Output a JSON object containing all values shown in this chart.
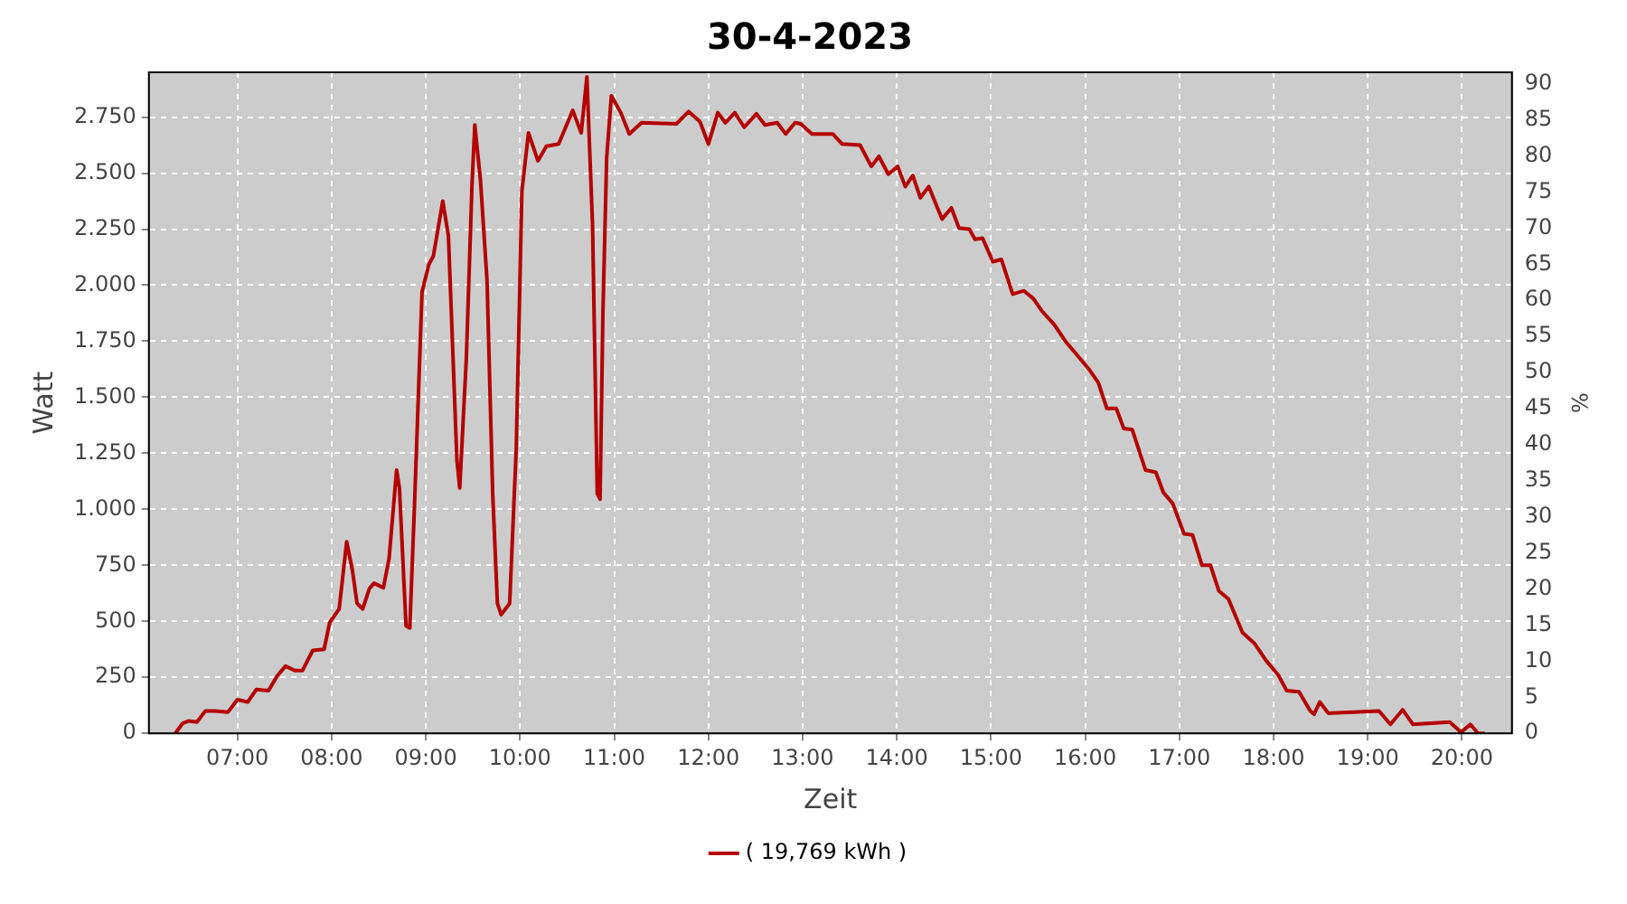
{
  "chart_data": {
    "type": "line",
    "title": "30-4-2023",
    "xlabel": "Zeit",
    "ylabel": "Watt",
    "y2label": "%",
    "xlim": [
      6.06,
      20.53
    ],
    "xticks": [
      {
        "value": 7,
        "label": "07:00"
      },
      {
        "value": 8,
        "label": "08:00"
      },
      {
        "value": 9,
        "label": "09:00"
      },
      {
        "value": 10,
        "label": "10:00"
      },
      {
        "value": 11,
        "label": "11:00"
      },
      {
        "value": 12,
        "label": "12:00"
      },
      {
        "value": 13,
        "label": "13:00"
      },
      {
        "value": 14,
        "label": "14:00"
      },
      {
        "value": 15,
        "label": "15:00"
      },
      {
        "value": 16,
        "label": "16:00"
      },
      {
        "value": 17,
        "label": "17:00"
      },
      {
        "value": 18,
        "label": "18:00"
      },
      {
        "value": 19,
        "label": "19:00"
      },
      {
        "value": 20,
        "label": "20:00"
      }
    ],
    "ylim": [
      0,
      2950
    ],
    "yticks": [
      0,
      250,
      500,
      750,
      {
        "value": 1000,
        "label": "1.000"
      },
      {
        "value": 1250,
        "label": "1.250"
      },
      {
        "value": 1500,
        "label": "1.500"
      },
      {
        "value": 1750,
        "label": "1.750"
      },
      {
        "value": 2000,
        "label": "2.000"
      },
      {
        "value": 2250,
        "label": "2.250"
      },
      {
        "value": 2500,
        "label": "2.500"
      },
      {
        "value": 2750,
        "label": "2.750"
      }
    ],
    "y2lim": [
      0,
      91.6
    ],
    "y2ticks": [
      0,
      5,
      10,
      15,
      20,
      25,
      30,
      35,
      40,
      45,
      50,
      55,
      60,
      65,
      70,
      75,
      80,
      85,
      90
    ],
    "grid": true,
    "legend": "bottom",
    "marker": "none",
    "line_style": "solid",
    "series": [
      {
        "name": "( 19,769 kWh )",
        "color": "#b40000",
        "x": [
          6.34,
          6.42,
          6.48,
          6.57,
          6.66,
          6.76,
          6.9,
          7.0,
          7.11,
          7.2,
          7.33,
          7.42,
          7.51,
          7.61,
          7.69,
          7.8,
          7.92,
          7.98,
          8.08,
          8.16,
          8.22,
          8.27,
          8.33,
          8.4,
          8.45,
          8.55,
          8.61,
          8.69,
          8.72,
          8.79,
          8.83,
          8.88,
          8.96,
          9.03,
          9.08,
          9.18,
          9.24,
          9.33,
          9.36,
          9.43,
          9.49,
          9.52,
          9.58,
          9.65,
          9.71,
          9.76,
          9.8,
          9.89,
          9.96,
          10.02,
          10.09,
          10.19,
          10.28,
          10.41,
          10.56,
          10.65,
          10.71,
          10.77,
          10.82,
          10.85,
          10.88,
          10.92,
          10.97,
          11.07,
          11.16,
          11.29,
          11.66,
          11.79,
          11.91,
          12.0,
          12.1,
          12.18,
          12.28,
          12.38,
          12.51,
          12.6,
          12.73,
          12.82,
          12.92,
          12.98,
          13.1,
          13.32,
          13.42,
          13.61,
          13.73,
          13.81,
          13.91,
          14.01,
          14.09,
          14.17,
          14.25,
          14.34,
          14.48,
          14.58,
          14.66,
          14.77,
          14.83,
          14.91,
          15.02,
          15.11,
          15.23,
          15.35,
          15.45,
          15.54,
          15.67,
          15.79,
          15.92,
          16.04,
          16.14,
          16.23,
          16.33,
          16.41,
          16.5,
          16.64,
          16.75,
          16.83,
          16.93,
          17.05,
          17.14,
          17.24,
          17.33,
          17.42,
          17.52,
          17.67,
          17.8,
          17.92,
          18.05,
          18.14,
          18.27,
          18.39,
          18.43,
          18.49,
          18.58,
          19.12,
          19.24,
          19.37,
          19.48,
          19.87,
          19.99,
          20.09,
          20.17,
          20.24
        ],
        "values": [
          0,
          45,
          55,
          50,
          100,
          100,
          95,
          150,
          140,
          195,
          190,
          255,
          300,
          280,
          280,
          370,
          375,
          495,
          555,
          855,
          730,
          580,
          555,
          645,
          670,
          650,
          780,
          1175,
          1095,
          480,
          470,
          1020,
          1970,
          2090,
          2130,
          2375,
          2220,
          1220,
          1095,
          1670,
          2445,
          2715,
          2470,
          2020,
          1070,
          580,
          530,
          580,
          1270,
          2420,
          2680,
          2555,
          2620,
          2630,
          2780,
          2680,
          2930,
          2270,
          1070,
          1045,
          1870,
          2570,
          2845,
          2770,
          2675,
          2725,
          2720,
          2775,
          2730,
          2630,
          2770,
          2725,
          2770,
          2705,
          2765,
          2715,
          2725,
          2675,
          2725,
          2720,
          2675,
          2675,
          2630,
          2625,
          2530,
          2575,
          2495,
          2530,
          2440,
          2490,
          2390,
          2440,
          2295,
          2345,
          2255,
          2250,
          2205,
          2210,
          2105,
          2115,
          1960,
          1975,
          1940,
          1885,
          1825,
          1750,
          1685,
          1625,
          1565,
          1450,
          1450,
          1360,
          1355,
          1175,
          1165,
          1075,
          1025,
          890,
          885,
          750,
          750,
          635,
          600,
          450,
          400,
          325,
          260,
          190,
          185,
          100,
          85,
          140,
          90,
          100,
          40,
          105,
          40,
          50,
          5,
          40,
          0,
          0
        ]
      }
    ]
  }
}
